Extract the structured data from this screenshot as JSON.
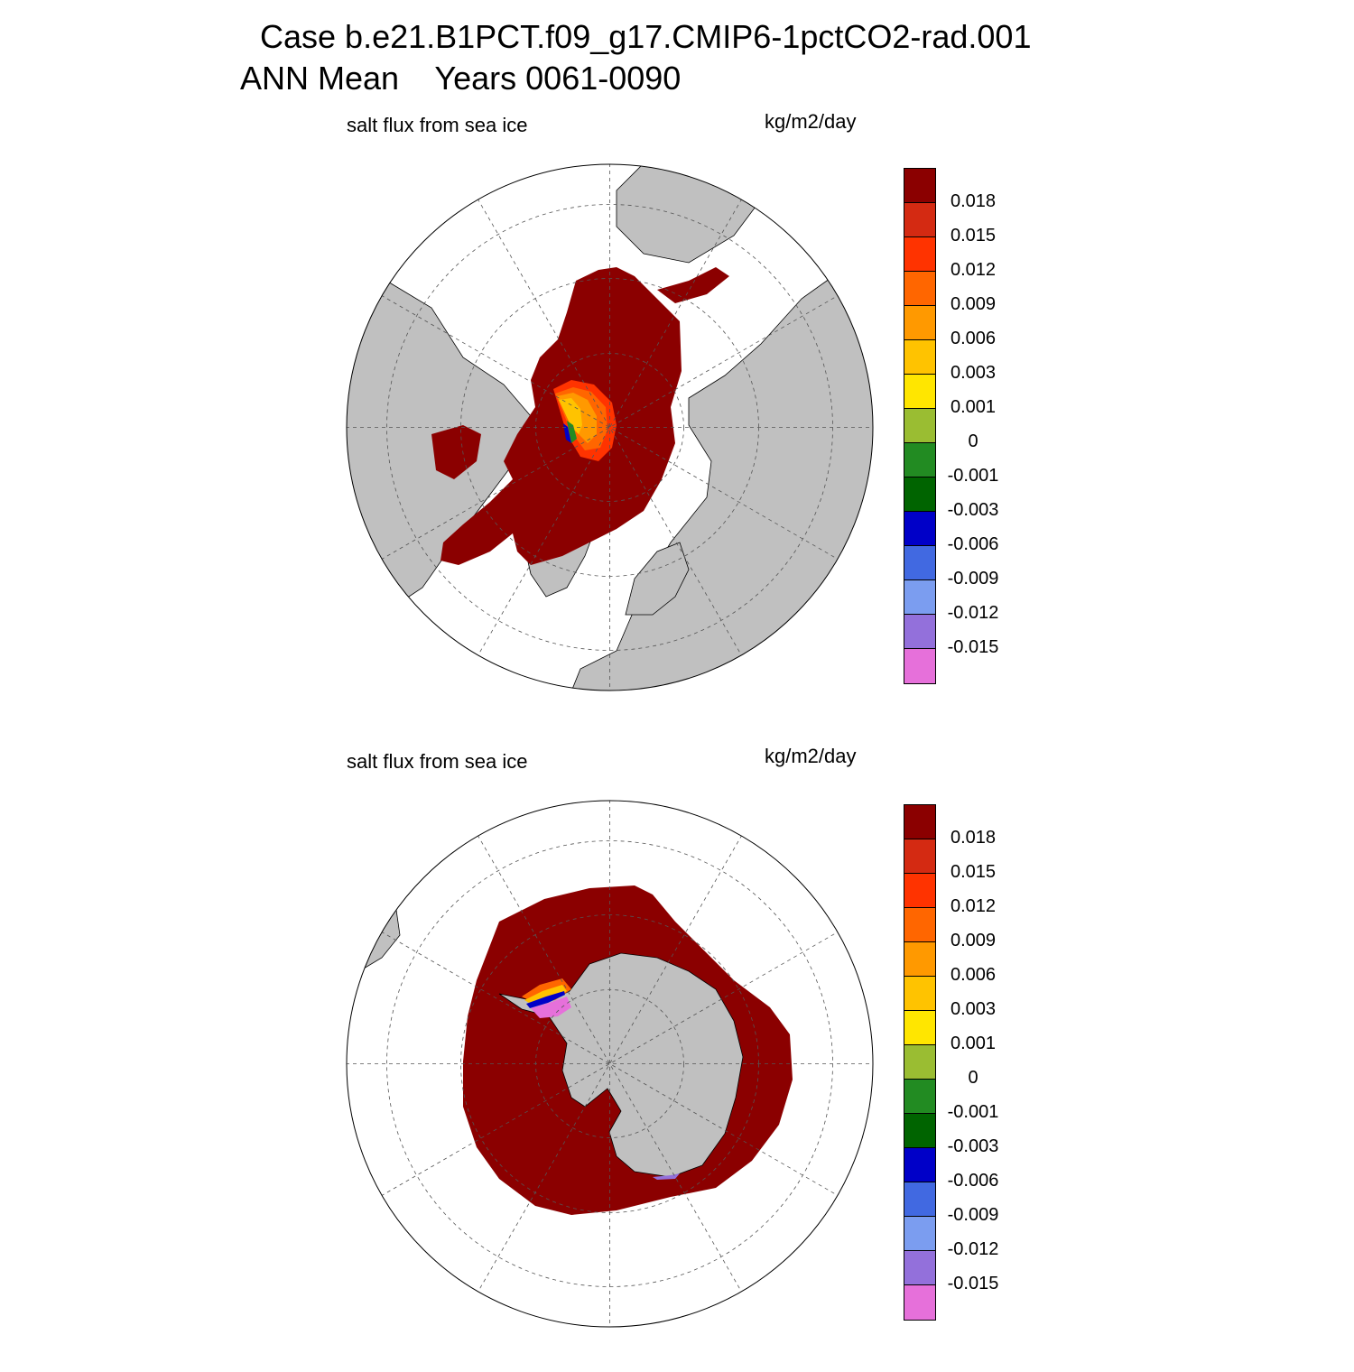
{
  "title": {
    "line1": "Case b.e21.B1PCT.f09_g17.CMIP6-1pctCO2-rad.001",
    "line2": "ANN Mean    Years 0061-0090"
  },
  "variable": "salt flux from sea ice",
  "units": "kg/m2/day",
  "colorbar": {
    "labels": [
      "0.018",
      "0.015",
      "0.012",
      "0.009",
      "0.006",
      "0.003",
      "0.001",
      "0",
      "-0.001",
      "-0.003",
      "-0.006",
      "-0.009",
      "-0.012",
      "-0.015"
    ],
    "colors": [
      "#8b0000",
      "#d42a12",
      "#ff3300",
      "#ff6600",
      "#ff9900",
      "#ffc300",
      "#ffe600",
      "#9abd32",
      "#228b22",
      "#006400",
      "#0000c8",
      "#4169e1",
      "#7b9df0",
      "#9370db",
      "#e670da"
    ]
  },
  "land_color": "#c0c0c0",
  "panels": [
    {
      "id": "north",
      "hemisphere": "Northern Hemisphere polar stereographic",
      "dominant_value_color": "#8b0000"
    },
    {
      "id": "south",
      "hemisphere": "Southern Hemisphere polar stereographic",
      "dominant_value_color": "#8b0000"
    }
  ]
}
